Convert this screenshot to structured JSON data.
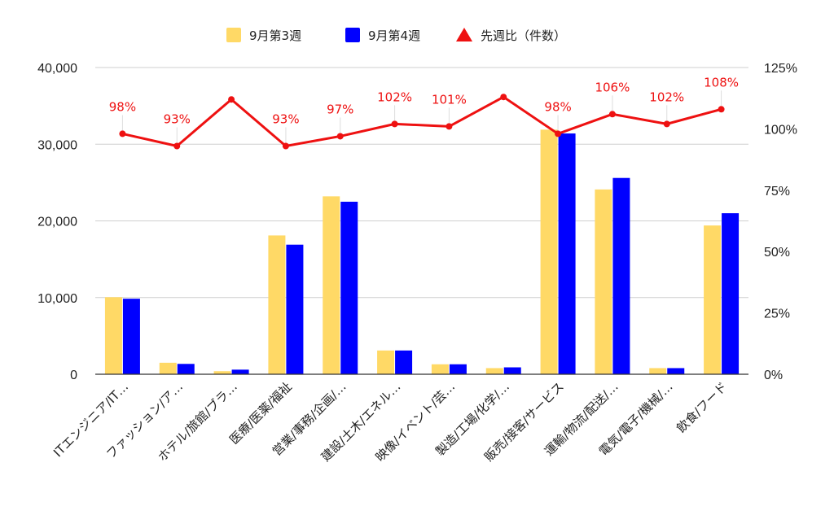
{
  "chart_data": {
    "type": "bar",
    "categories": [
      "ITエンジニア/IT…",
      "ファッション/ア…",
      "ホテル/旅館/ブラ…",
      "医療/医薬/福祉",
      "営業/事務/企画/…",
      "建設/土木/エネル…",
      "映像/イベント/芸…",
      "製造/工場/化学/…",
      "販売/接客/サービス",
      "運輸/物流/配送/…",
      "電気/電子/機械/…",
      "飲食/フード"
    ],
    "series": [
      {
        "name": "9月第3週",
        "color": "#ffd966",
        "values": [
          10050,
          1500,
          400,
          18100,
          23200,
          3100,
          1300,
          800,
          31900,
          24100,
          800,
          19400
        ]
      },
      {
        "name": "9月第4週",
        "color": "#0000ff",
        "values": [
          9850,
          1350,
          600,
          16900,
          22500,
          3100,
          1300,
          900,
          31400,
          25600,
          800,
          21000
        ]
      }
    ],
    "line_series": {
      "name": "先週比（件数）",
      "color": "#ee1111",
      "marker": "triangle",
      "values": [
        98,
        93,
        112,
        93,
        97,
        102,
        101,
        113,
        98,
        106,
        102,
        108
      ],
      "labels": [
        "98%",
        "93%",
        "",
        "93%",
        "97%",
        "102%",
        "101%",
        "",
        "98%",
        "106%",
        "102%",
        "108%"
      ]
    },
    "y_left": {
      "range": [
        0,
        40000
      ],
      "ticks": [
        0,
        10000,
        20000,
        30000,
        40000
      ],
      "tick_labels": [
        "0",
        "10,000",
        "20,000",
        "30,000",
        "40,000"
      ]
    },
    "y_right": {
      "range": [
        0,
        125
      ],
      "ticks": [
        0,
        25,
        50,
        75,
        100,
        125
      ],
      "tick_labels": [
        "0%",
        "25%",
        "50%",
        "75%",
        "100%",
        "125%"
      ]
    },
    "grid": true,
    "legend_position": "top-center",
    "title": "",
    "xlabel": "",
    "ylabel": ""
  }
}
